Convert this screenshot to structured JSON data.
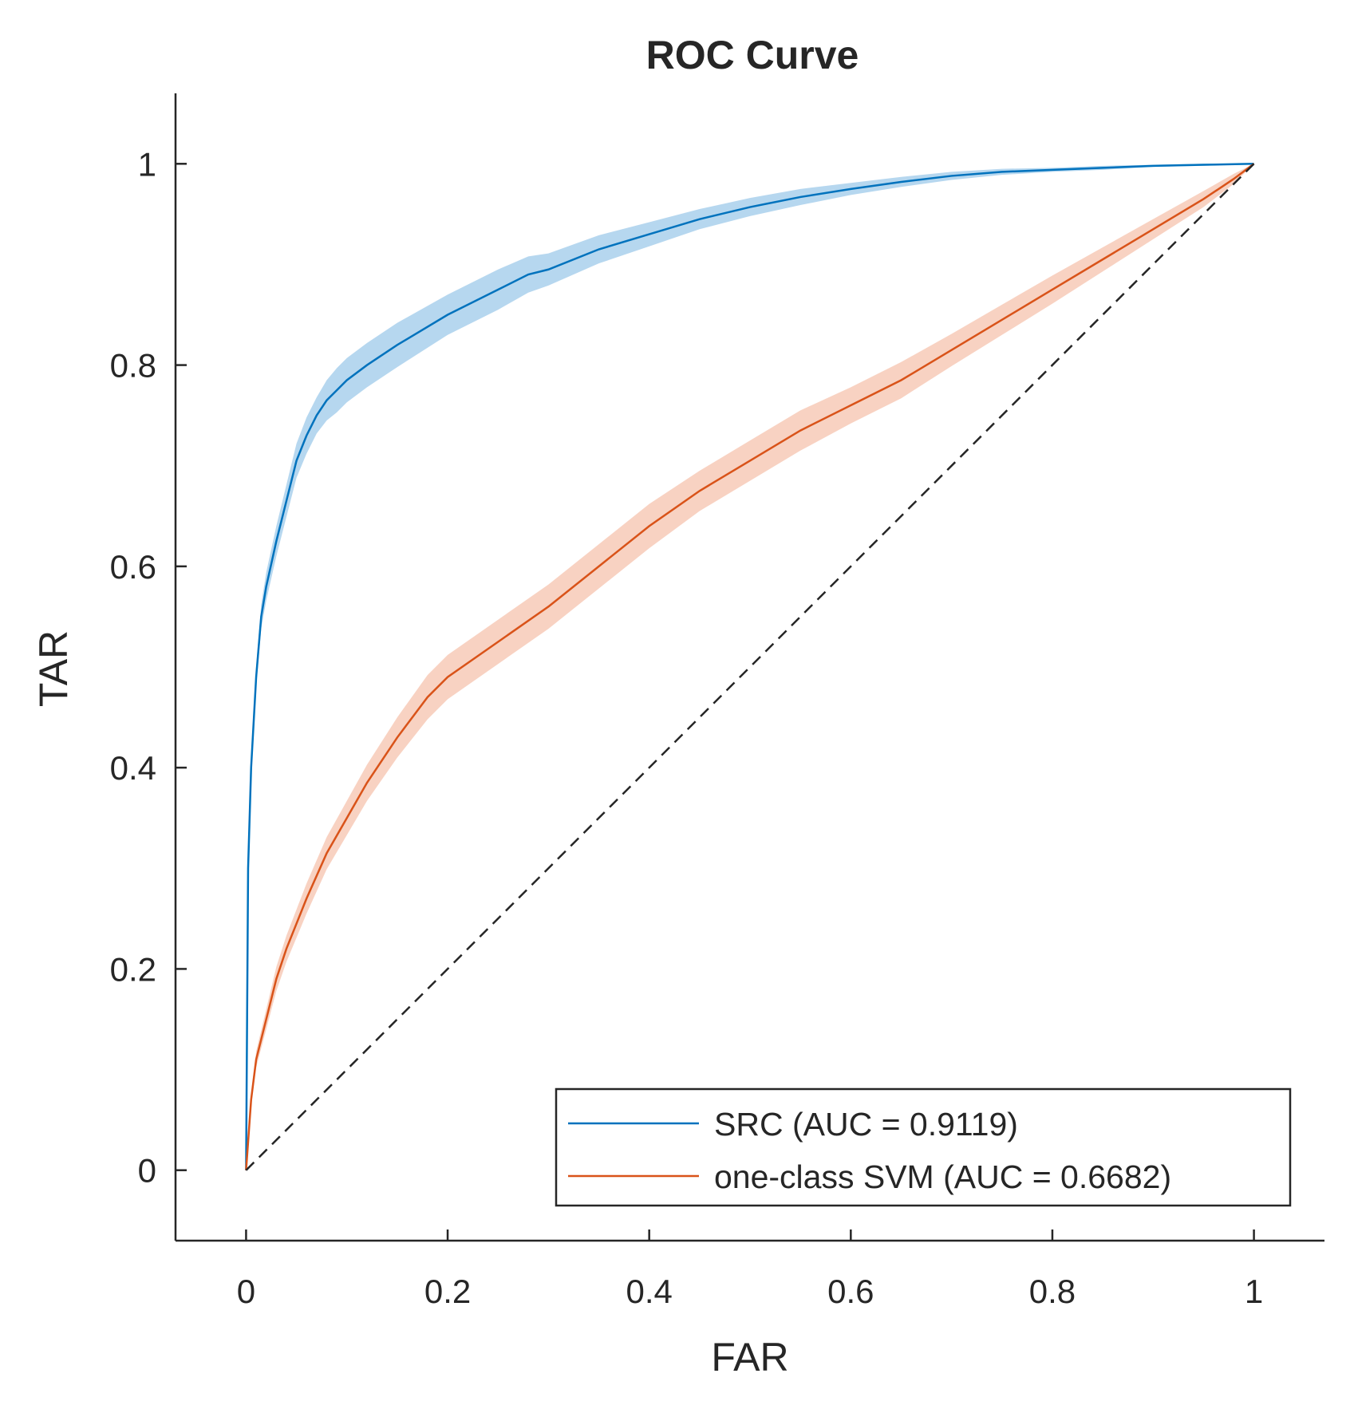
{
  "chart_data": {
    "type": "line",
    "title": "ROC Curve",
    "xlabel": "FAR",
    "ylabel": "TAR",
    "xlim": [
      -0.07,
      1.07
    ],
    "ylim": [
      -0.07,
      1.07
    ],
    "x_ticks": [
      "0",
      "0.2",
      "0.4",
      "0.6",
      "0.8",
      "1"
    ],
    "y_ticks": [
      "0",
      "0.2",
      "0.4",
      "0.6",
      "0.8",
      "1"
    ],
    "grid": false,
    "legend_position": "bottom-right",
    "series": [
      {
        "name": "SRC (AUC = 0.9119)",
        "color": "#0072BD",
        "band_color": "#9ECAE9",
        "x": [
          0,
          0.002,
          0.005,
          0.01,
          0.015,
          0.02,
          0.03,
          0.04,
          0.05,
          0.06,
          0.07,
          0.08,
          0.09,
          0.1,
          0.12,
          0.15,
          0.2,
          0.25,
          0.28,
          0.3,
          0.35,
          0.4,
          0.45,
          0.5,
          0.55,
          0.6,
          0.65,
          0.7,
          0.75,
          0.8,
          0.85,
          0.9,
          0.95,
          1.0
        ],
        "y": [
          0,
          0.3,
          0.4,
          0.49,
          0.55,
          0.58,
          0.625,
          0.665,
          0.705,
          0.73,
          0.75,
          0.765,
          0.775,
          0.785,
          0.8,
          0.82,
          0.85,
          0.875,
          0.89,
          0.895,
          0.915,
          0.93,
          0.945,
          0.957,
          0.967,
          0.975,
          0.982,
          0.988,
          0.992,
          0.994,
          0.996,
          0.998,
          0.999,
          1.0
        ],
        "band_width": [
          0,
          0.005,
          0.008,
          0.01,
          0.012,
          0.014,
          0.015,
          0.016,
          0.017,
          0.018,
          0.018,
          0.02,
          0.022,
          0.022,
          0.022,
          0.022,
          0.02,
          0.02,
          0.018,
          0.016,
          0.014,
          0.012,
          0.01,
          0.009,
          0.008,
          0.006,
          0.005,
          0.004,
          0.003,
          0.002,
          0.002,
          0.001,
          0.001,
          0
        ]
      },
      {
        "name": "one-class SVM (AUC = 0.6682)",
        "color": "#D95319",
        "band_color": "#F6C3AE",
        "x": [
          0,
          0.005,
          0.01,
          0.02,
          0.03,
          0.04,
          0.05,
          0.06,
          0.08,
          0.1,
          0.12,
          0.15,
          0.18,
          0.2,
          0.25,
          0.3,
          0.35,
          0.4,
          0.45,
          0.5,
          0.55,
          0.6,
          0.65,
          0.7,
          0.75,
          0.8,
          0.85,
          0.9,
          0.95,
          0.98,
          1.0
        ],
        "y": [
          0,
          0.07,
          0.11,
          0.15,
          0.19,
          0.22,
          0.245,
          0.27,
          0.315,
          0.35,
          0.385,
          0.43,
          0.47,
          0.49,
          0.525,
          0.56,
          0.6,
          0.64,
          0.675,
          0.705,
          0.735,
          0.76,
          0.785,
          0.815,
          0.845,
          0.875,
          0.905,
          0.935,
          0.965,
          0.985,
          1.0
        ],
        "band_width": [
          0,
          0.006,
          0.008,
          0.01,
          0.012,
          0.013,
          0.014,
          0.015,
          0.016,
          0.017,
          0.018,
          0.02,
          0.022,
          0.022,
          0.022,
          0.022,
          0.022,
          0.022,
          0.02,
          0.02,
          0.02,
          0.018,
          0.018,
          0.016,
          0.015,
          0.014,
          0.012,
          0.01,
          0.008,
          0.005,
          0
        ]
      },
      {
        "color": "#262626",
        "x": [
          0,
          1
        ],
        "y": [
          0,
          1
        ]
      }
    ]
  }
}
